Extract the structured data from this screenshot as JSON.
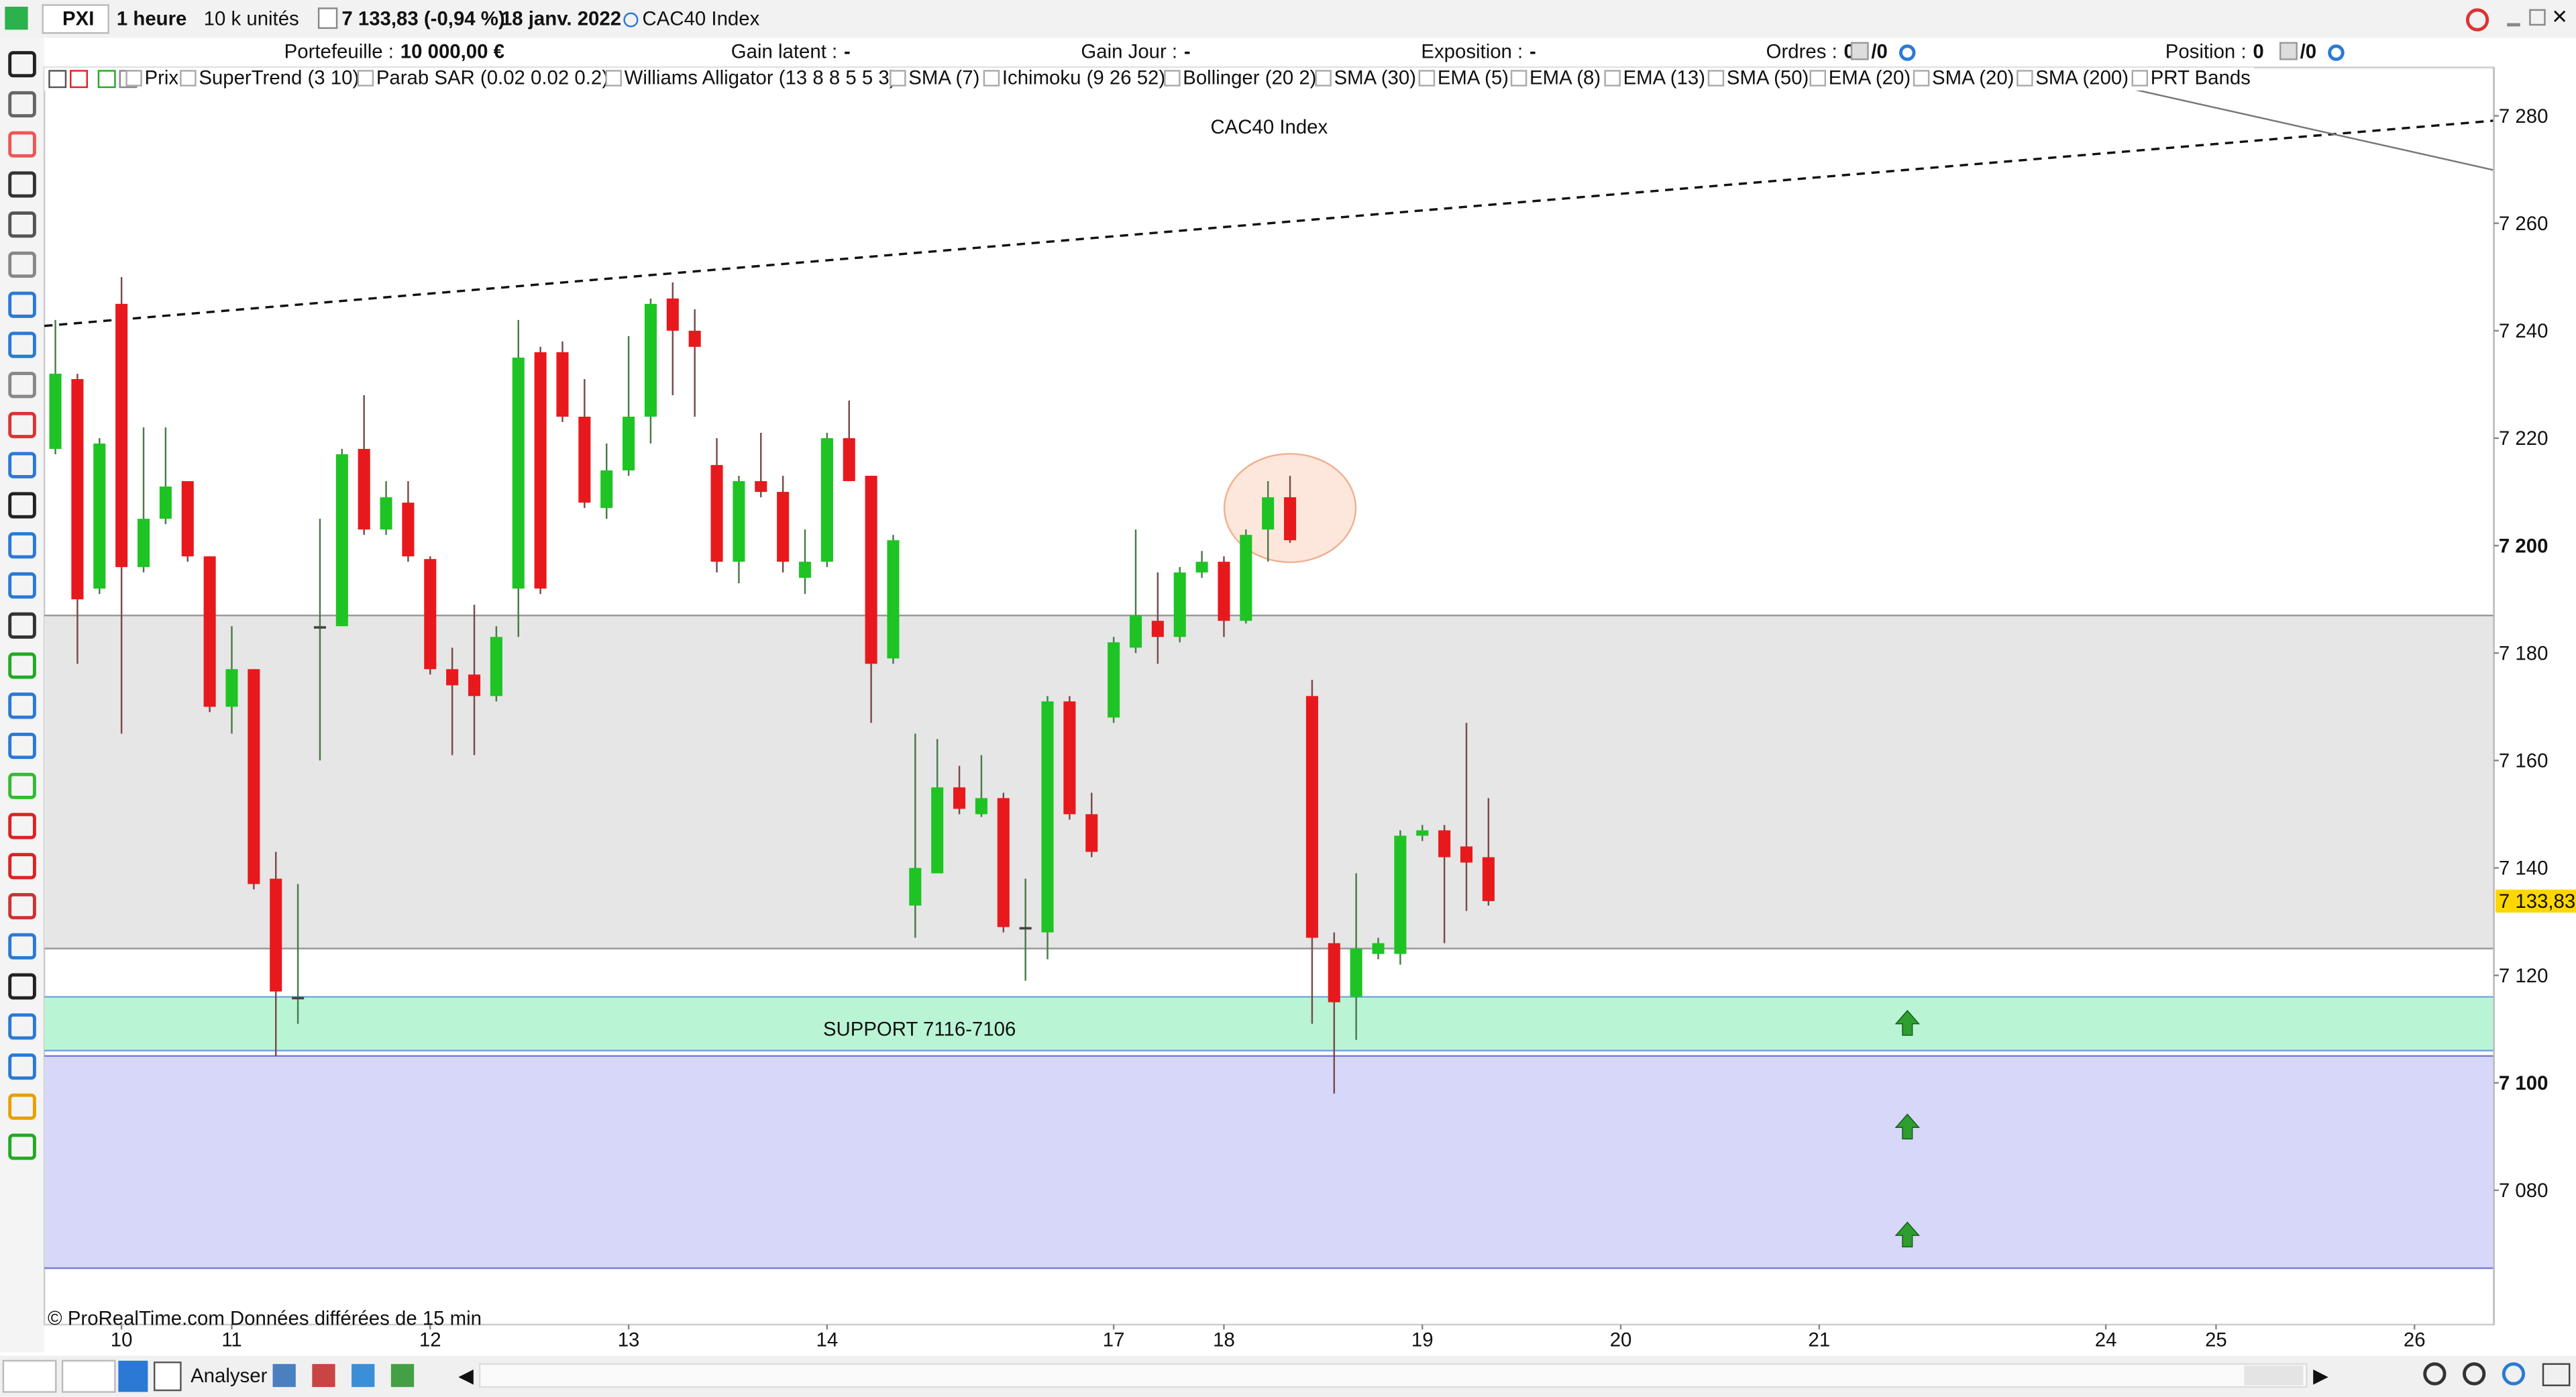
{
  "toolbar": {
    "symbol": "PXI",
    "timeframe": "1 heure",
    "units": "10 k unités",
    "quote": "7 133,83 (-0,94 %)",
    "date": "18 janv. 2022",
    "instrument": "CAC40 Index"
  },
  "info_bar": [
    {
      "label": "Portefeuille :",
      "value": "10 000,00 €"
    },
    {
      "label": "Gain latent :",
      "value": "-"
    },
    {
      "label": "Gain Jour :",
      "value": "-"
    },
    {
      "label": "Exposition :",
      "value": "-"
    },
    {
      "label": "Ordres :",
      "value": "0",
      "extra": "/0"
    },
    {
      "label": "Position :",
      "value": "0",
      "extra": "/0"
    }
  ],
  "indicators": [
    "Prix",
    "SuperTrend (3 10)",
    "Parab SAR (0.02 0.02 0.2)",
    "Williams Alligator (13 8 8 5 5 3)",
    "SMA (7)",
    "Ichimoku (9 26 52)",
    "Bollinger (20 2)",
    "SMA (30)",
    "EMA (5)",
    "EMA (8)",
    "EMA (13)",
    "SMA (50)",
    "EMA (20)",
    "SMA (20)",
    "SMA (200)",
    "PRT Bands"
  ],
  "chart_data": {
    "type": "candlestick",
    "watermark": "CAC40 Index",
    "source_note": "© ProRealTime.com  Données différées de 15 min",
    "up_color": "#1ec424",
    "down_color": "#e8191c",
    "open": [
      7218,
      7231,
      7192,
      7245,
      7196,
      7205,
      7212,
      7198,
      7170,
      7177,
      7138,
      7116,
      7185,
      7185,
      7218,
      7203,
      7208,
      7197.5,
      7177,
      7176,
      7172,
      7192,
      7236,
      7236,
      7224,
      7207,
      7214,
      7224,
      7246,
      7240,
      7215,
      7197,
      7212,
      7210,
      7194,
      7197,
      7220,
      7213,
      7179,
      7133,
      7139,
      7155,
      7150,
      7153,
      7129,
      7128,
      7171,
      7150,
      7168,
      7181,
      7186,
      7183,
      7195,
      7197,
      7186,
      7203,
      7209,
      7172,
      7126,
      7116,
      7124,
      7124,
      7146,
      7147,
      7144,
      7142
    ],
    "high": [
      7242,
      7232,
      7220,
      7250,
      7222,
      7222,
      7212,
      7198,
      7185,
      7177,
      7143,
      7137,
      7205,
      7218,
      7228,
      7212,
      7212,
      7198,
      7181,
      7189,
      7185,
      7242,
      7237,
      7238,
      7231,
      7219,
      7239,
      7246,
      7249,
      7244,
      7220,
      7213,
      7221,
      7213,
      7203,
      7221,
      7227,
      7213,
      7202,
      7165,
      7164,
      7159,
      7161,
      7154,
      7138,
      7172,
      7172,
      7154,
      7183,
      7203,
      7195,
      7196,
      7199,
      7198,
      7203,
      7212,
      7213,
      7175,
      7128,
      7139,
      7127,
      7147,
      7148,
      7148,
      7167,
      7153
    ],
    "low": [
      7217,
      7178,
      7191,
      7165,
      7195,
      7204,
      7197,
      7169,
      7165,
      7136,
      7105,
      7111,
      7160,
      7185,
      7202,
      7202,
      7197,
      7176,
      7161,
      7161,
      7171,
      7183,
      7191,
      7223,
      7207,
      7205,
      7213,
      7219,
      7228,
      7224,
      7195,
      7193,
      7209,
      7195,
      7191,
      7196,
      7212,
      7167,
      7178,
      7127,
      7139,
      7150,
      7149.5,
      7128,
      7119,
      7123,
      7149,
      7142,
      7167,
      7180,
      7178,
      7182,
      7194,
      7183,
      7185.5,
      7197,
      7200.5,
      7111,
      7098,
      7108,
      7123,
      7122,
      7145,
      7126,
      7132,
      7133
    ],
    "close": [
      7232,
      7190,
      7219,
      7196,
      7205,
      7211,
      7198,
      7170,
      7177,
      7137,
      7117,
      7116,
      7185,
      7217,
      7203,
      7209,
      7198,
      7177,
      7174,
      7172,
      7183,
      7235,
      7192,
      7224,
      7208,
      7214,
      7224,
      7245,
      7240,
      7237,
      7197,
      7212,
      7210,
      7197,
      7197,
      7220,
      7212,
      7178,
      7201,
      7140,
      7155,
      7151,
      7153,
      7129,
      7129,
      7171,
      7150,
      7143,
      7182,
      7187,
      7183,
      7195,
      7197,
      7186,
      7202,
      7209,
      7201,
      7127,
      7115,
      7125,
      7126,
      7146,
      7147,
      7142,
      7141,
      7133.83
    ],
    "last_price": {
      "value": 7133.83,
      "label": "7 133,83",
      "color": "#ffd700"
    },
    "xlim": [
      -0.5,
      110.6
    ],
    "xticks": [
      {
        "value": 3,
        "label": "10"
      },
      {
        "value": 8,
        "label": "11"
      },
      {
        "value": 17,
        "label": "12"
      },
      {
        "value": 26,
        "label": "13"
      },
      {
        "value": 35,
        "label": "14"
      },
      {
        "value": 48,
        "label": "17"
      },
      {
        "value": 53,
        "label": "18"
      },
      {
        "value": 62,
        "label": "19"
      },
      {
        "value": 71,
        "label": "20"
      },
      {
        "value": 80,
        "label": "21"
      },
      {
        "value": 93,
        "label": "24"
      },
      {
        "value": 98,
        "label": "25"
      },
      {
        "value": 107,
        "label": "26"
      }
    ],
    "ylim": [
      7055,
      7289
    ],
    "yticks": [
      {
        "value": 7080,
        "label": "7 080"
      },
      {
        "value": 7100,
        "label": "7 100"
      },
      {
        "value": 7120,
        "label": "7 120"
      },
      {
        "value": 7140,
        "label": "7 140"
      },
      {
        "value": 7160,
        "label": "7 160"
      },
      {
        "value": 7180,
        "label": "7 180"
      },
      {
        "value": 7200,
        "label": "7 200"
      },
      {
        "value": 7220,
        "label": "7 220"
      },
      {
        "value": 7240,
        "label": "7 240"
      },
      {
        "value": 7260,
        "label": "7 260"
      },
      {
        "value": 7280,
        "label": "7 280"
      }
    ],
    "bold_yticks": [
      7100,
      7200
    ],
    "zones": [
      {
        "from": 7125,
        "to": 7187,
        "color": "#e6e6e6",
        "border": "#9a9a9a"
      },
      {
        "from": 7106,
        "to": 7116,
        "color": "#b9f5d5",
        "border": "#6fa8dc",
        "label": "SUPPORT 7116-7106"
      },
      {
        "from": 7065.5,
        "to": 7105,
        "color": "#d7d7fa",
        "border": "#7b7be0"
      }
    ],
    "lines": [
      {
        "x": [
          -0.5,
          110.6
        ],
        "y": [
          7240.9,
          7279.1
        ],
        "dashed": true,
        "color": "#111111"
      },
      {
        "x": [
          94.3,
          110.6
        ],
        "y": [
          7284.9,
          7269.9
        ],
        "dashed": false,
        "color": "#777777"
      }
    ],
    "arrows": {
      "x": [
        84,
        84,
        84
      ],
      "y": [
        7111,
        7091.7,
        7071.6
      ],
      "color": "#2e9e2e"
    },
    "highlight": {
      "x": 56,
      "y": 7207,
      "color": "#fbd7c4"
    }
  },
  "bottom_bar": {
    "analyse": "Analyser"
  }
}
